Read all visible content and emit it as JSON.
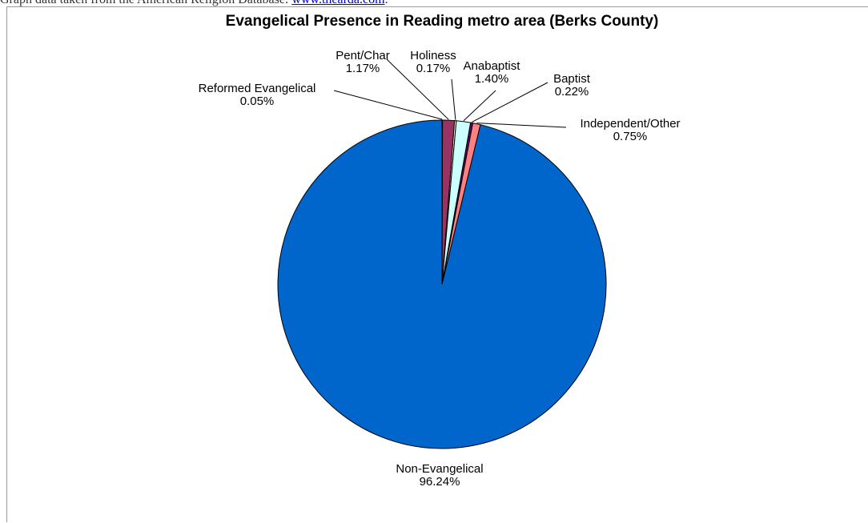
{
  "header_note": {
    "text": "Graph data taken from the American Religion Database: ",
    "link_text": "www.thearda.com",
    "trailing": "."
  },
  "chart_data": {
    "type": "pie",
    "title": "Evangelical Presence in Reading metro area (Berks County)",
    "slices": [
      {
        "label": "Reformed Evangelical",
        "value": 0.05,
        "display": "0.05%",
        "color": "#993366"
      },
      {
        "label": "Pent/Char",
        "value": 1.17,
        "display": "1.17%",
        "color": "#993366"
      },
      {
        "label": "Holiness",
        "value": 0.17,
        "display": "0.17%",
        "color": "#ffffcc"
      },
      {
        "label": "Anabaptist",
        "value": 1.4,
        "display": "1.40%",
        "color": "#ccffff"
      },
      {
        "label": "Baptist",
        "value": 0.22,
        "display": "0.22%",
        "color": "#660066"
      },
      {
        "label": "Independent/Other",
        "value": 0.75,
        "display": "0.75%",
        "color": "#ff8080"
      },
      {
        "label": "Non-Evangelical",
        "value": 96.24,
        "display": "96.24%",
        "color": "#0066cc"
      }
    ],
    "legend": "none",
    "labels": "outside with leader lines"
  }
}
